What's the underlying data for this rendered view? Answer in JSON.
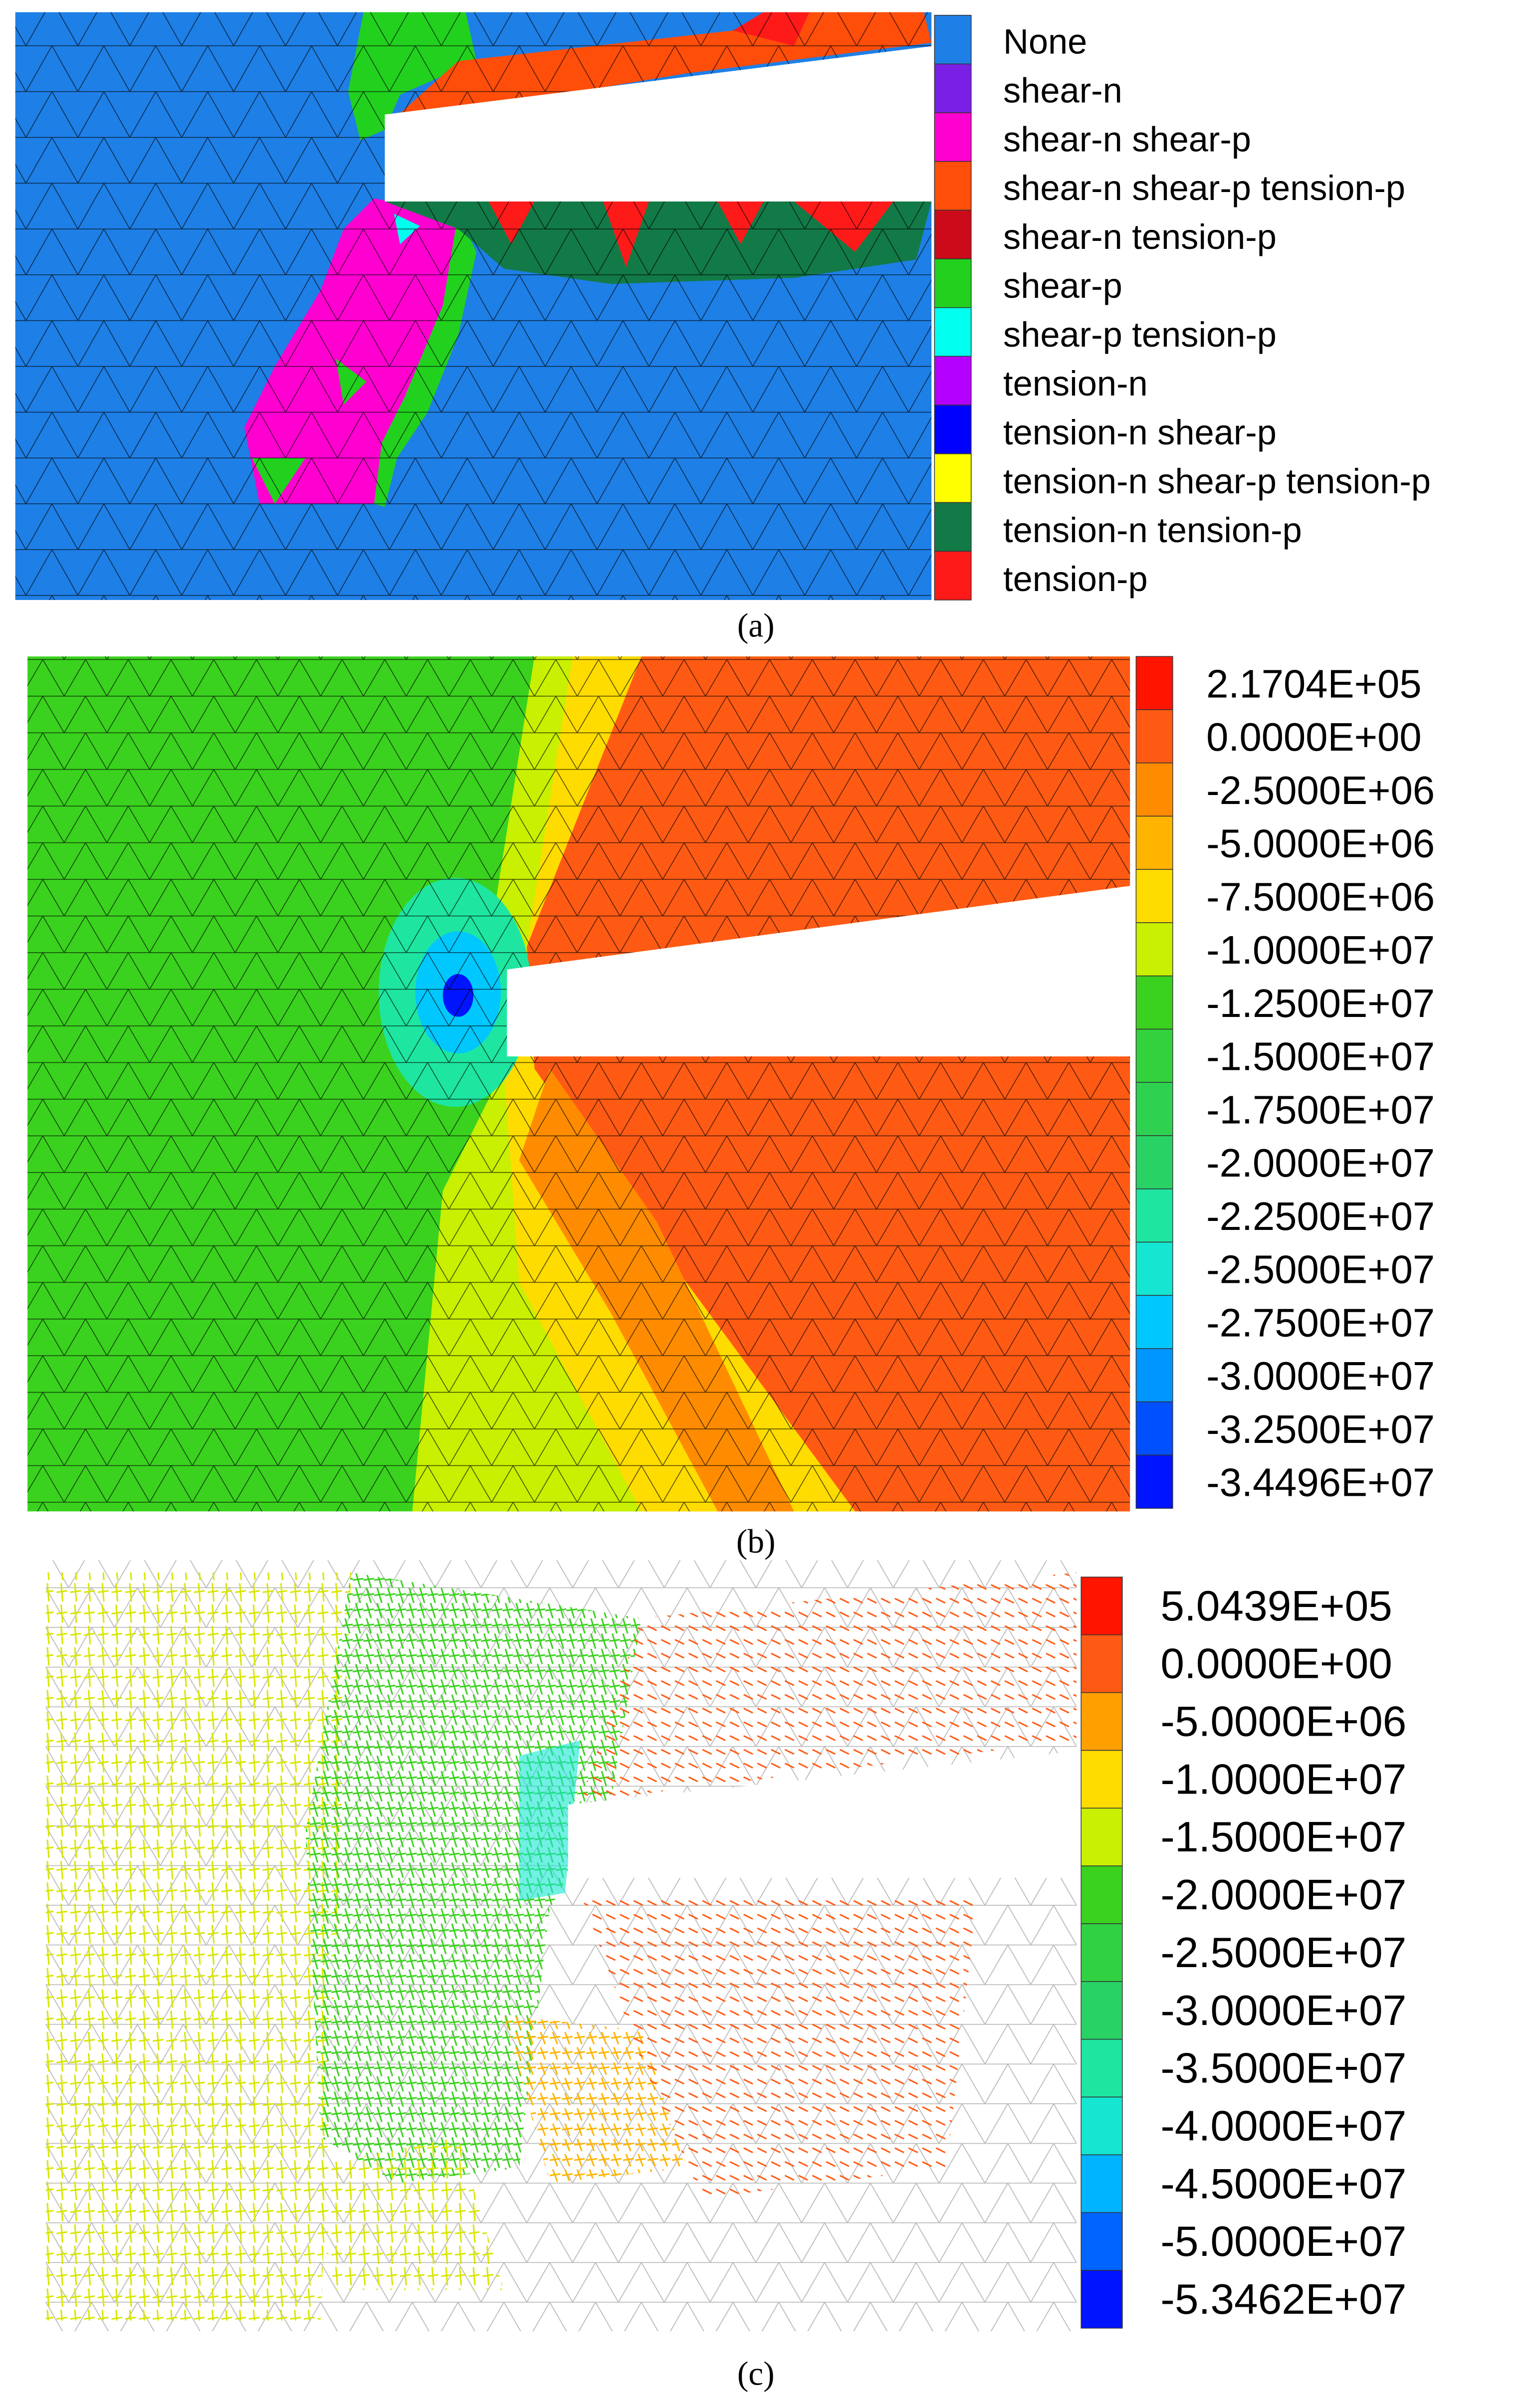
{
  "panels": [
    {
      "label": "(a)",
      "legend": [
        {
          "label": "None",
          "color": "#1e7fe6"
        },
        {
          "label": "shear-n",
          "color": "#7a1fe6"
        },
        {
          "label": "shear-n shear-p",
          "color": "#ff00d0"
        },
        {
          "label": "shear-n shear-p tension-p",
          "color": "#ff4d0a"
        },
        {
          "label": "shear-n tension-p",
          "color": "#cc0a1a"
        },
        {
          "label": "shear-p",
          "color": "#22d11e"
        },
        {
          "label": "shear-p tension-p",
          "color": "#00ffee"
        },
        {
          "label": "tension-n",
          "color": "#b400ff"
        },
        {
          "label": "tension-n shear-p",
          "color": "#0000ff"
        },
        {
          "label": "tension-n shear-p tension-p",
          "color": "#ffff00"
        },
        {
          "label": "tension-n tension-p",
          "color": "#127a47"
        },
        {
          "label": "tension-p",
          "color": "#ff1a1a"
        }
      ]
    },
    {
      "label": "(b)",
      "legend": [
        {
          "label": "2.1704E+05",
          "color": "#ff1400"
        },
        {
          "label": "0.0000E+00",
          "color": "#ff5a14"
        },
        {
          "label": "-2.5000E+06",
          "color": "#ff8c00"
        },
        {
          "label": "-5.0000E+06",
          "color": "#ffb400"
        },
        {
          "label": "-7.5000E+06",
          "color": "#ffdc00"
        },
        {
          "label": "-1.0000E+07",
          "color": "#c8f000"
        },
        {
          "label": "-1.2500E+07",
          "color": "#3ad21e"
        },
        {
          "label": "-1.5000E+07",
          "color": "#32d23c"
        },
        {
          "label": "-1.7500E+07",
          "color": "#2ed250"
        },
        {
          "label": "-2.0000E+07",
          "color": "#28d264"
        },
        {
          "label": "-2.2500E+07",
          "color": "#1ee6a0"
        },
        {
          "label": "-2.5000E+07",
          "color": "#14e6d2"
        },
        {
          "label": "-2.7500E+07",
          "color": "#00c8ff"
        },
        {
          "label": "-3.0000E+07",
          "color": "#0096ff"
        },
        {
          "label": "-3.2500E+07",
          "color": "#0050ff"
        },
        {
          "label": "-3.4496E+07",
          "color": "#0014ff"
        }
      ]
    },
    {
      "label": "(c)",
      "legend": [
        {
          "label": "5.0439E+05",
          "color": "#ff1400"
        },
        {
          "label": "0.0000E+00",
          "color": "#ff5a14"
        },
        {
          "label": "-5.0000E+06",
          "color": "#ffa000"
        },
        {
          "label": "-1.0000E+07",
          "color": "#ffdc00"
        },
        {
          "label": "-1.5000E+07",
          "color": "#c8f000"
        },
        {
          "label": "-2.0000E+07",
          "color": "#3ad21e"
        },
        {
          "label": "-2.5000E+07",
          "color": "#30d244"
        },
        {
          "label": "-3.0000E+07",
          "color": "#28d264"
        },
        {
          "label": "-3.5000E+07",
          "color": "#1ee6a0"
        },
        {
          "label": "-4.0000E+07",
          "color": "#14e6d2"
        },
        {
          "label": "-4.5000E+07",
          "color": "#00b4ff"
        },
        {
          "label": "-5.0000E+07",
          "color": "#0064ff"
        },
        {
          "label": "-5.3462E+07",
          "color": "#0014ff"
        }
      ]
    }
  ]
}
